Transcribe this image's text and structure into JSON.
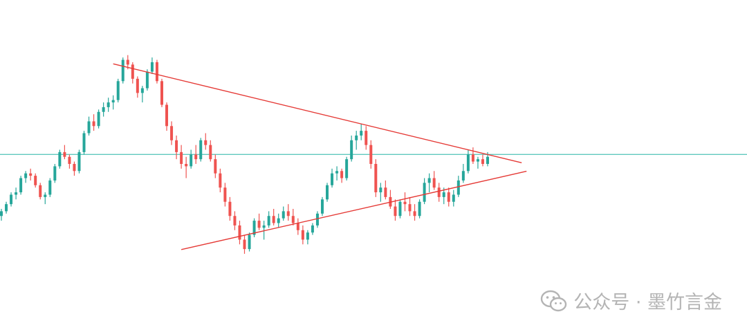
{
  "chart_data": {
    "type": "candlestick",
    "title": "",
    "xlabel": "",
    "ylabel": "",
    "grid": false,
    "ylim": [
      0,
      100
    ],
    "colors": {
      "up": "#26a69a",
      "down": "#ef5350",
      "trendline": "#e53935",
      "level": "#5fc9be"
    },
    "candles": [
      [
        28,
        31,
        26,
        30
      ],
      [
        30,
        34,
        29,
        33
      ],
      [
        33,
        38,
        32,
        37
      ],
      [
        37,
        40,
        35,
        38
      ],
      [
        38,
        45,
        37,
        44
      ],
      [
        44,
        47,
        42,
        46
      ],
      [
        46,
        48,
        43,
        45
      ],
      [
        45,
        46,
        40,
        41
      ],
      [
        41,
        42,
        35,
        36
      ],
      [
        36,
        38,
        33,
        37
      ],
      [
        37,
        44,
        36,
        43
      ],
      [
        43,
        50,
        42,
        49
      ],
      [
        49,
        56,
        48,
        55
      ],
      [
        55,
        58,
        52,
        53
      ],
      [
        53,
        54,
        48,
        50
      ],
      [
        50,
        51,
        45,
        47
      ],
      [
        47,
        56,
        46,
        55
      ],
      [
        55,
        64,
        54,
        63
      ],
      [
        63,
        70,
        62,
        68
      ],
      [
        68,
        71,
        64,
        66
      ],
      [
        66,
        73,
        65,
        72
      ],
      [
        72,
        76,
        70,
        74
      ],
      [
        74,
        78,
        72,
        76
      ],
      [
        76,
        79,
        73,
        77
      ],
      [
        77,
        86,
        76,
        85
      ],
      [
        85,
        95,
        84,
        94
      ],
      [
        94,
        96,
        90,
        92
      ],
      [
        92,
        93,
        84,
        86
      ],
      [
        86,
        87,
        78,
        80
      ],
      [
        80,
        83,
        76,
        82
      ],
      [
        82,
        90,
        81,
        89
      ],
      [
        89,
        95,
        88,
        93
      ],
      [
        93,
        94,
        84,
        85
      ],
      [
        85,
        86,
        74,
        75
      ],
      [
        75,
        76,
        64,
        66
      ],
      [
        66,
        68,
        58,
        60
      ],
      [
        60,
        62,
        52,
        55
      ],
      [
        55,
        58,
        48,
        50
      ],
      [
        50,
        53,
        44,
        49
      ],
      [
        49,
        56,
        48,
        54
      ],
      [
        54,
        58,
        50,
        52
      ],
      [
        52,
        61,
        51,
        60
      ],
      [
        60,
        63,
        56,
        58
      ],
      [
        58,
        60,
        51,
        52
      ],
      [
        52,
        54,
        44,
        46
      ],
      [
        46,
        48,
        38,
        40
      ],
      [
        40,
        42,
        32,
        34
      ],
      [
        34,
        36,
        26,
        28
      ],
      [
        28,
        30,
        22,
        24
      ],
      [
        24,
        26,
        16,
        18
      ],
      [
        18,
        20,
        12,
        14
      ],
      [
        14,
        21,
        13,
        20
      ],
      [
        20,
        27,
        19,
        26
      ],
      [
        26,
        29,
        22,
        23
      ],
      [
        23,
        26,
        18,
        24
      ],
      [
        24,
        30,
        23,
        28
      ],
      [
        28,
        31,
        24,
        25
      ],
      [
        25,
        29,
        23,
        27
      ],
      [
        27,
        32,
        26,
        30
      ],
      [
        30,
        33,
        26,
        28
      ],
      [
        28,
        31,
        24,
        25
      ],
      [
        25,
        27,
        20,
        22
      ],
      [
        22,
        24,
        16,
        18
      ],
      [
        18,
        22,
        16,
        21
      ],
      [
        21,
        25,
        20,
        24
      ],
      [
        24,
        30,
        23,
        29
      ],
      [
        29,
        36,
        28,
        35
      ],
      [
        35,
        42,
        34,
        41
      ],
      [
        41,
        48,
        40,
        46
      ],
      [
        46,
        49,
        43,
        47
      ],
      [
        47,
        48,
        42,
        44
      ],
      [
        44,
        53,
        43,
        52
      ],
      [
        52,
        62,
        51,
        60
      ],
      [
        60,
        64,
        56,
        62
      ],
      [
        62,
        67,
        60,
        64
      ],
      [
        64,
        66,
        56,
        58
      ],
      [
        58,
        60,
        48,
        50
      ],
      [
        50,
        52,
        36,
        38
      ],
      [
        38,
        42,
        34,
        40
      ],
      [
        40,
        43,
        35,
        36
      ],
      [
        36,
        39,
        31,
        32
      ],
      [
        32,
        35,
        26,
        28
      ],
      [
        28,
        35,
        27,
        34
      ],
      [
        34,
        38,
        30,
        33
      ],
      [
        33,
        36,
        28,
        30
      ],
      [
        30,
        33,
        26,
        28
      ],
      [
        28,
        35,
        27,
        34
      ],
      [
        34,
        44,
        33,
        42
      ],
      [
        42,
        46,
        38,
        44
      ],
      [
        44,
        47,
        39,
        40
      ],
      [
        40,
        42,
        34,
        36
      ],
      [
        36,
        40,
        33,
        38
      ],
      [
        38,
        40,
        32,
        34
      ],
      [
        34,
        39,
        32,
        37
      ],
      [
        37,
        45,
        36,
        43
      ],
      [
        43,
        50,
        42,
        47
      ],
      [
        47,
        56,
        46,
        54
      ],
      [
        54,
        57,
        50,
        51
      ],
      [
        51,
        53,
        48,
        52
      ],
      [
        52,
        54,
        49,
        50
      ],
      [
        50,
        55,
        49,
        53
      ]
    ],
    "lines": [
      {
        "name": "descending-trendline",
        "from": [
          23,
          92.3
        ],
        "to": [
          107,
          50.5
        ]
      },
      {
        "name": "ascending-trendline",
        "from": [
          37,
          13.8
        ],
        "to": [
          108,
          46.9
        ]
      },
      {
        "name": "horizontal-level",
        "value": 54
      }
    ]
  },
  "watermark": {
    "text": "公众号 · 墨竹言金",
    "icon": "wechat-icon"
  }
}
